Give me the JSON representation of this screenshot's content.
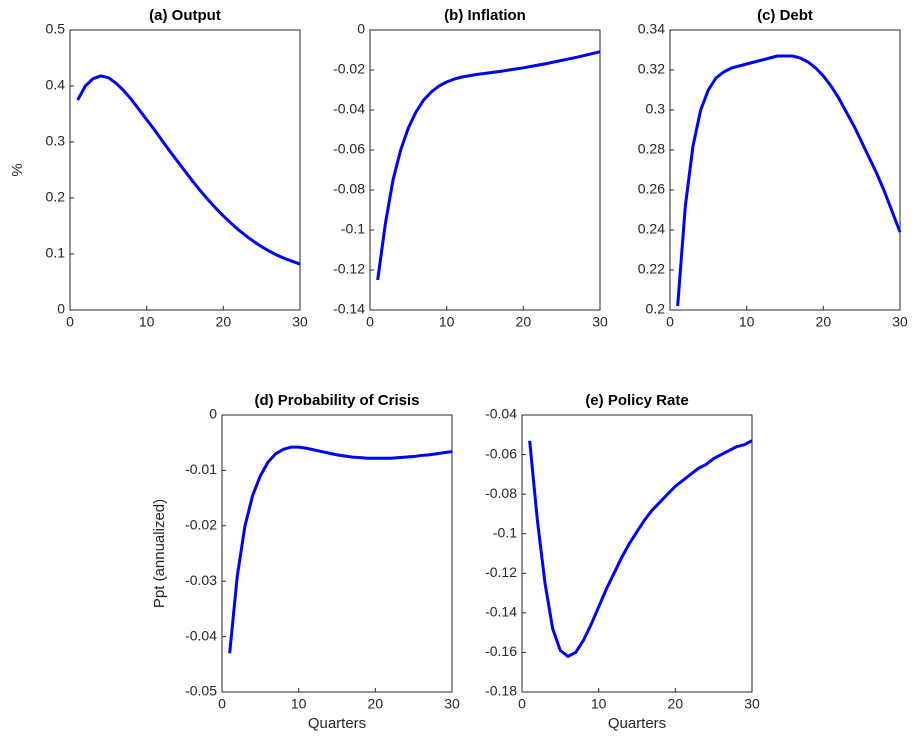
{
  "chart_data": [
    {
      "type": "line",
      "title": "(a) Output",
      "ylabel": "%",
      "x": [
        1,
        2,
        3,
        4,
        5,
        6,
        7,
        8,
        9,
        10,
        11,
        12,
        13,
        14,
        15,
        16,
        17,
        18,
        19,
        20,
        21,
        22,
        23,
        24,
        25,
        26,
        27,
        28,
        29,
        30
      ],
      "series": [
        {
          "color": "#0000ff",
          "values": [
            0.375,
            0.4,
            0.413,
            0.418,
            0.415,
            0.405,
            0.392,
            0.376,
            0.358,
            0.34,
            0.322,
            0.303,
            0.284,
            0.266,
            0.248,
            0.23,
            0.213,
            0.197,
            0.182,
            0.168,
            0.155,
            0.143,
            0.132,
            0.122,
            0.113,
            0.105,
            0.098,
            0.092,
            0.087,
            0.082
          ]
        }
      ],
      "xlim": [
        0,
        30
      ],
      "xticks": [
        0,
        10,
        20,
        30
      ],
      "ylim": [
        0,
        0.5
      ],
      "yticks": [
        0,
        0.1,
        0.2,
        0.3,
        0.4,
        0.5
      ]
    },
    {
      "type": "line",
      "title": "(b) Inflation",
      "x": [
        1,
        2,
        3,
        4,
        5,
        6,
        7,
        8,
        9,
        10,
        11,
        12,
        13,
        14,
        15,
        16,
        17,
        18,
        19,
        20,
        21,
        22,
        23,
        24,
        25,
        26,
        27,
        28,
        29,
        30
      ],
      "series": [
        {
          "color": "#0000ff",
          "values": [
            -0.125,
            -0.097,
            -0.075,
            -0.06,
            -0.049,
            -0.041,
            -0.035,
            -0.031,
            -0.028,
            -0.026,
            -0.0245,
            -0.0235,
            -0.0228,
            -0.0222,
            -0.0217,
            -0.0212,
            -0.0207,
            -0.0201,
            -0.0195,
            -0.0189,
            -0.0182,
            -0.0175,
            -0.0168,
            -0.016,
            -0.0152,
            -0.0144,
            -0.0136,
            -0.0127,
            -0.0118,
            -0.0109
          ]
        }
      ],
      "xlim": [
        0,
        30
      ],
      "xticks": [
        0,
        10,
        20,
        30
      ],
      "ylim": [
        -0.14,
        0
      ],
      "yticks": [
        -0.14,
        -0.12,
        -0.1,
        -0.08,
        -0.06,
        -0.04,
        -0.02,
        0
      ]
    },
    {
      "type": "line",
      "title": "(c) Debt",
      "x": [
        1,
        2,
        3,
        4,
        5,
        6,
        7,
        8,
        9,
        10,
        11,
        12,
        13,
        14,
        15,
        16,
        17,
        18,
        19,
        20,
        21,
        22,
        23,
        24,
        25,
        26,
        27,
        28,
        29,
        30
      ],
      "series": [
        {
          "color": "#0000ff",
          "values": [
            0.202,
            0.252,
            0.282,
            0.3,
            0.31,
            0.316,
            0.319,
            0.321,
            0.322,
            0.323,
            0.324,
            0.325,
            0.326,
            0.327,
            0.327,
            0.327,
            0.326,
            0.324,
            0.321,
            0.317,
            0.312,
            0.306,
            0.299,
            0.292,
            0.284,
            0.276,
            0.268,
            0.259,
            0.249,
            0.239
          ]
        }
      ],
      "xlim": [
        0,
        30
      ],
      "xticks": [
        0,
        10,
        20,
        30
      ],
      "ylim": [
        0.2,
        0.34
      ],
      "yticks": [
        0.2,
        0.22,
        0.24,
        0.26,
        0.28,
        0.3,
        0.32,
        0.34
      ]
    },
    {
      "type": "line",
      "title": "(d) Probability of Crisis",
      "xlabel": "Quarters",
      "ylabel": "Ppt (annualized)",
      "x": [
        1,
        2,
        3,
        4,
        5,
        6,
        7,
        8,
        9,
        10,
        11,
        12,
        13,
        14,
        15,
        16,
        17,
        18,
        19,
        20,
        21,
        22,
        23,
        24,
        25,
        26,
        27,
        28,
        29,
        30
      ],
      "series": [
        {
          "color": "#0000ff",
          "values": [
            -0.043,
            -0.029,
            -0.02,
            -0.0145,
            -0.011,
            -0.0085,
            -0.007,
            -0.0062,
            -0.0058,
            -0.0058,
            -0.006,
            -0.0063,
            -0.0066,
            -0.0069,
            -0.0072,
            -0.0074,
            -0.0076,
            -0.0077,
            -0.0078,
            -0.0078,
            -0.0078,
            -0.0078,
            -0.0077,
            -0.0076,
            -0.0075,
            -0.0073,
            -0.0072,
            -0.007,
            -0.0068,
            -0.0066
          ]
        }
      ],
      "xlim": [
        0,
        30
      ],
      "xticks": [
        0,
        10,
        20,
        30
      ],
      "ylim": [
        -0.05,
        0
      ],
      "yticks": [
        -0.05,
        -0.04,
        -0.03,
        -0.02,
        -0.01,
        0
      ]
    },
    {
      "type": "line",
      "title": "(e) Policy Rate",
      "xlabel": "Quarters",
      "x": [
        1,
        2,
        3,
        4,
        5,
        6,
        7,
        8,
        9,
        10,
        11,
        12,
        13,
        14,
        15,
        16,
        17,
        18,
        19,
        20,
        21,
        22,
        23,
        24,
        25,
        26,
        27,
        28,
        29,
        30
      ],
      "series": [
        {
          "color": "#0000ff",
          "values": [
            -0.053,
            -0.093,
            -0.125,
            -0.148,
            -0.159,
            -0.162,
            -0.16,
            -0.154,
            -0.146,
            -0.137,
            -0.128,
            -0.12,
            -0.112,
            -0.105,
            -0.099,
            -0.093,
            -0.088,
            -0.084,
            -0.08,
            -0.076,
            -0.073,
            -0.07,
            -0.067,
            -0.065,
            -0.062,
            -0.06,
            -0.058,
            -0.056,
            -0.055,
            -0.053
          ]
        }
      ],
      "xlim": [
        0,
        30
      ],
      "xticks": [
        0,
        10,
        20,
        30
      ],
      "ylim": [
        -0.18,
        -0.04
      ],
      "yticks": [
        -0.18,
        -0.16,
        -0.14,
        -0.12,
        -0.1,
        -0.08,
        -0.06,
        -0.04
      ]
    }
  ]
}
